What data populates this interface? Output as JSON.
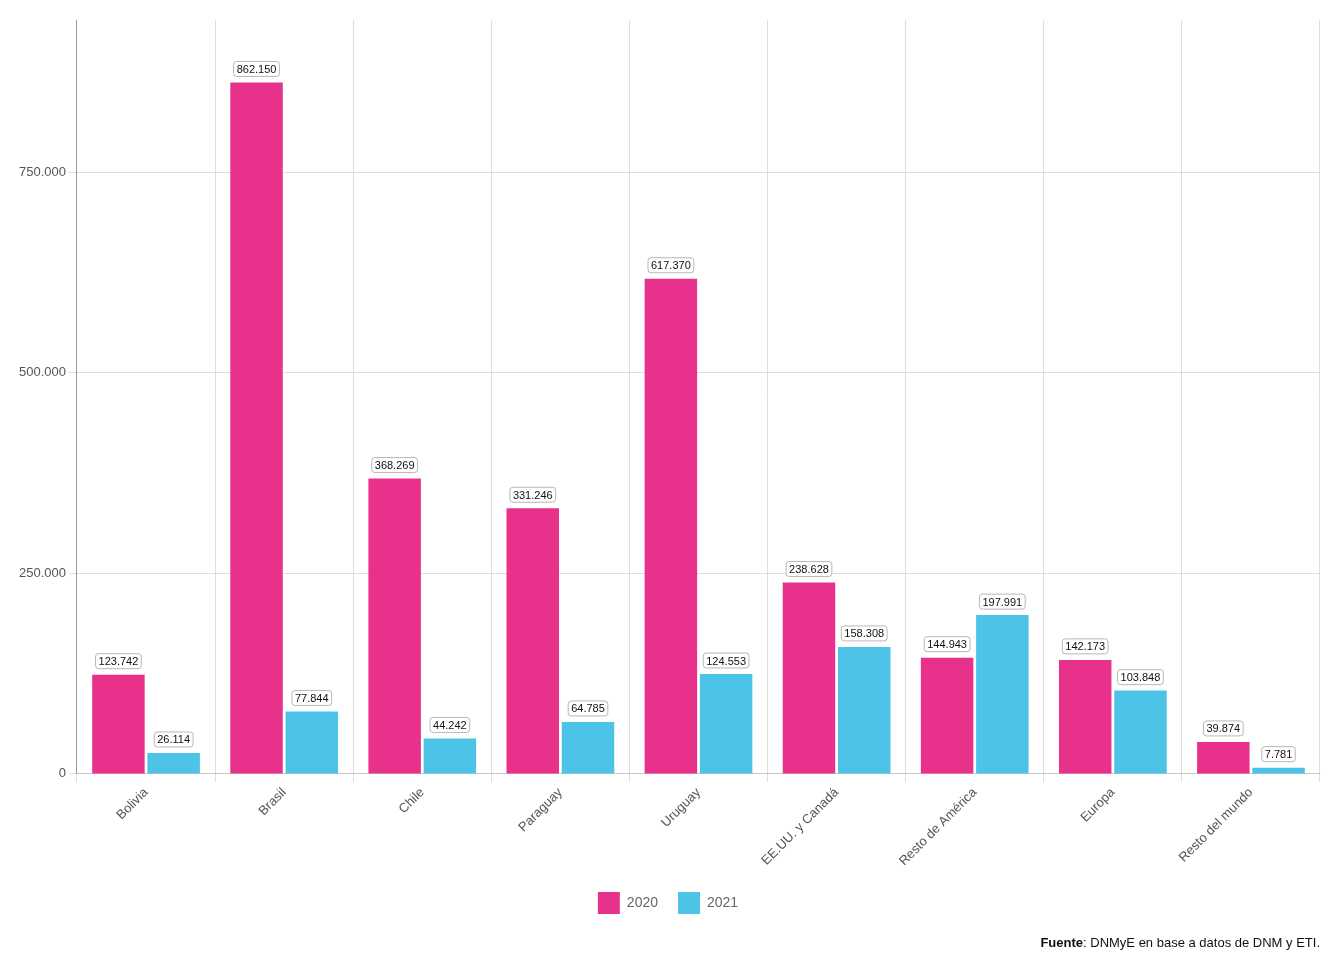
{
  "chart_data": {
    "type": "bar",
    "categories": [
      "Bolivia",
      "Brasil",
      "Chile",
      "Paraguay",
      "Uruguay",
      "EE.UU. y Canadá",
      "Resto de América",
      "Europa",
      "Resto del mundo"
    ],
    "series": [
      {
        "name": "2020",
        "color": "#E8318A",
        "values": [
          123742,
          862150,
          368269,
          331246,
          617370,
          238628,
          144943,
          142173,
          39874
        ],
        "value_labels": [
          "123.742",
          "862.150",
          "368.269",
          "331.246",
          "617.370",
          "238.628",
          "144.943",
          "142.173",
          "39.874"
        ]
      },
      {
        "name": "2021",
        "color": "#4DC3E8",
        "values": [
          26114,
          77844,
          44242,
          64785,
          124553,
          158308,
          197991,
          103848,
          7781
        ],
        "value_labels": [
          "26.114",
          "77.844",
          "44.242",
          "64.785",
          "124.553",
          "158.308",
          "197.991",
          "103.848",
          "7.781"
        ]
      }
    ],
    "ylim": [
      0,
      940000
    ],
    "yticks": [
      0,
      {
        "value": 250000,
        "label": "250.000"
      },
      {
        "value": 500000,
        "label": "500.000"
      },
      {
        "value": 750000,
        "label": "750.000"
      }
    ],
    "grid": true,
    "legend": "bottom",
    "data_labels": true,
    "annotations": [
      "Fuente: DNMyE en base a datos de DNM y ETI."
    ]
  }
}
